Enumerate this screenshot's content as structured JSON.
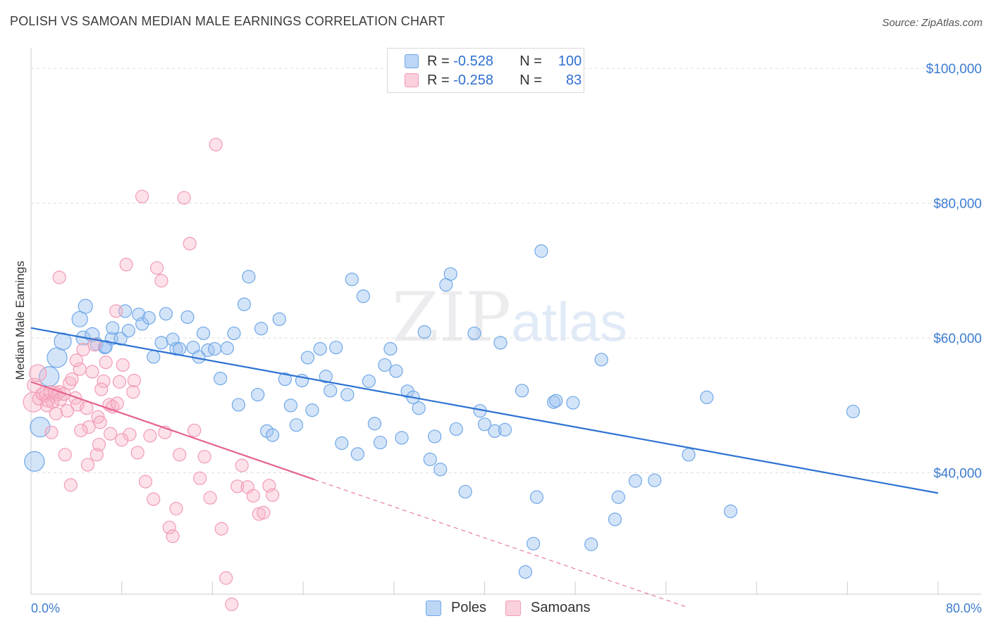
{
  "header": {
    "title": "POLISH VS SAMOAN MEDIAN MALE EARNINGS CORRELATION CHART",
    "source": "Source: ZipAtlas.com"
  },
  "watermark": {
    "zip": "ZIP",
    "atlas": "atlas"
  },
  "legend": {
    "rows": [
      {
        "r_label": "R = ",
        "r_value": "-0.528",
        "n_label": "N = ",
        "n_value": "100",
        "color": "#6fa8e8"
      },
      {
        "r_label": "R = ",
        "r_value": "-0.258",
        "n_label": "N = ",
        "n_value": "83",
        "color": "#f29bb6"
      }
    ]
  },
  "bottom_legend": {
    "poles": "Poles",
    "samoans": "Samoans"
  },
  "chart_data": {
    "type": "scatter",
    "ylabel": "Median Male Earnings",
    "xlim": [
      0,
      80
    ],
    "ylim": [
      22000,
      102000
    ],
    "x_tick_labels": [
      {
        "value": 0,
        "label": "0.0%"
      },
      {
        "value": 80,
        "label": "80.0%"
      }
    ],
    "y_tick_labels": [
      {
        "value": 100000,
        "label": "$100,000"
      },
      {
        "value": 80000,
        "label": "$80,000"
      },
      {
        "value": 60000,
        "label": "$60,000"
      },
      {
        "value": 40000,
        "label": "$40,000"
      }
    ],
    "x_minor_ticks": [
      0,
      8,
      16,
      24,
      32,
      40,
      48,
      56,
      64,
      72,
      80
    ],
    "gridlines": [
      40000,
      60000,
      80000,
      100000
    ],
    "series": [
      {
        "name": "Poles",
        "color": "#6fa8e8",
        "trend": {
          "x0": 0,
          "y0": 61500,
          "x1": 80,
          "y1": 37000
        },
        "points": [
          [
            0.3,
            41700,
            14
          ],
          [
            0.8,
            46800,
            14
          ],
          [
            1.6,
            54300,
            14
          ],
          [
            2.3,
            57100,
            14
          ],
          [
            2.8,
            59500,
            12
          ],
          [
            4.3,
            62800,
            11
          ],
          [
            4.6,
            60000,
            10
          ],
          [
            4.8,
            64700,
            10
          ],
          [
            5.4,
            60500,
            10
          ],
          [
            5.8,
            59100,
            9
          ],
          [
            6.5,
            58600,
            9
          ],
          [
            7.1,
            59900,
            9
          ],
          [
            7.2,
            61500,
            9
          ],
          [
            7.9,
            59900,
            9
          ],
          [
            8.3,
            64000,
            9
          ],
          [
            8.6,
            61100,
            9
          ],
          [
            9.5,
            63500,
            9
          ],
          [
            9.8,
            62100,
            9
          ],
          [
            10.4,
            63000,
            9
          ],
          [
            10.8,
            57200,
            9
          ],
          [
            11.5,
            59300,
            9
          ],
          [
            11.9,
            63600,
            9
          ],
          [
            12.5,
            59800,
            9
          ],
          [
            12.8,
            58400,
            9
          ],
          [
            13.1,
            58400,
            9
          ],
          [
            13.8,
            63100,
            9
          ],
          [
            14.3,
            58600,
            9
          ],
          [
            14.8,
            57200,
            9
          ],
          [
            15.2,
            60700,
            9
          ],
          [
            15.6,
            58200,
            9
          ],
          [
            16.2,
            58400,
            9
          ],
          [
            16.7,
            54000,
            9
          ],
          [
            17.3,
            58500,
            9
          ],
          [
            17.9,
            60700,
            9
          ],
          [
            18.3,
            50100,
            9
          ],
          [
            18.8,
            65000,
            9
          ],
          [
            19.2,
            69100,
            9
          ],
          [
            20.0,
            51600,
            9
          ],
          [
            20.3,
            61400,
            9
          ],
          [
            20.8,
            46200,
            9
          ],
          [
            21.3,
            45600,
            9
          ],
          [
            21.9,
            62800,
            9
          ],
          [
            22.4,
            53900,
            9
          ],
          [
            22.9,
            50000,
            9
          ],
          [
            23.4,
            47100,
            9
          ],
          [
            23.9,
            53700,
            9
          ],
          [
            24.4,
            57100,
            9
          ],
          [
            24.8,
            49300,
            9
          ],
          [
            25.5,
            58400,
            9
          ],
          [
            26.0,
            54300,
            9
          ],
          [
            26.4,
            52200,
            9
          ],
          [
            26.9,
            58600,
            9
          ],
          [
            27.4,
            44400,
            9
          ],
          [
            27.9,
            51600,
            9
          ],
          [
            28.3,
            68700,
            9
          ],
          [
            28.8,
            42800,
            9
          ],
          [
            29.3,
            66200,
            9
          ],
          [
            29.8,
            53600,
            9
          ],
          [
            30.3,
            47300,
            9
          ],
          [
            30.8,
            44500,
            9
          ],
          [
            31.2,
            56000,
            9
          ],
          [
            31.7,
            58400,
            9
          ],
          [
            32.2,
            55100,
            9
          ],
          [
            32.7,
            45200,
            9
          ],
          [
            33.2,
            52100,
            9
          ],
          [
            33.7,
            51200,
            9
          ],
          [
            34.2,
            49600,
            9
          ],
          [
            34.7,
            60900,
            9
          ],
          [
            35.2,
            42000,
            9
          ],
          [
            35.6,
            45400,
            9
          ],
          [
            36.1,
            40500,
            9
          ],
          [
            36.6,
            67900,
            9
          ],
          [
            37.0,
            69500,
            9
          ],
          [
            37.5,
            46500,
            9
          ],
          [
            38.3,
            37200,
            9
          ],
          [
            39.1,
            60700,
            9
          ],
          [
            39.6,
            49200,
            9
          ],
          [
            40.0,
            47200,
            9
          ],
          [
            40.9,
            46200,
            9
          ],
          [
            41.4,
            59300,
            9
          ],
          [
            41.8,
            46400,
            9
          ],
          [
            43.3,
            52200,
            9
          ],
          [
            43.6,
            25300,
            9
          ],
          [
            44.3,
            29500,
            9
          ],
          [
            44.6,
            36400,
            9
          ],
          [
            45.0,
            72900,
            9
          ],
          [
            46.1,
            50500,
            9
          ],
          [
            46.3,
            50700,
            9
          ],
          [
            47.8,
            50400,
            9
          ],
          [
            49.4,
            29400,
            9
          ],
          [
            50.3,
            56800,
            9
          ],
          [
            51.5,
            33100,
            9
          ],
          [
            51.8,
            36400,
            9
          ],
          [
            53.3,
            38800,
            9
          ],
          [
            55.0,
            38900,
            9
          ],
          [
            58.0,
            42700,
            9
          ],
          [
            59.6,
            51200,
            9
          ],
          [
            61.7,
            34300,
            9
          ],
          [
            72.5,
            49100,
            9
          ],
          [
            6.6,
            58700,
            9
          ]
        ]
      },
      {
        "name": "Samoans",
        "color": "#f29bb6",
        "trend": {
          "x0": 0,
          "y0": 53500,
          "x1": 25,
          "y1": 39000,
          "dash_x1": 58,
          "dash_y1": 20000
        },
        "points": [
          [
            0.2,
            50500,
            14
          ],
          [
            0.3,
            53000,
            10
          ],
          [
            0.6,
            54800,
            12
          ],
          [
            0.7,
            51000,
            9
          ],
          [
            1.0,
            51700,
            9
          ],
          [
            1.3,
            51500,
            9
          ],
          [
            1.5,
            50700,
            9
          ],
          [
            1.7,
            52000,
            9
          ],
          [
            1.9,
            50500,
            9
          ],
          [
            2.1,
            51900,
            9
          ],
          [
            2.3,
            51600,
            9
          ],
          [
            2.5,
            52000,
            9
          ],
          [
            2.6,
            50900,
            9
          ],
          [
            2.9,
            51700,
            9
          ],
          [
            3.2,
            49200,
            9
          ],
          [
            2.5,
            69000,
            9
          ],
          [
            3.4,
            53300,
            9
          ],
          [
            3.6,
            53900,
            9
          ],
          [
            3.9,
            51100,
            9
          ],
          [
            4.1,
            50100,
            9
          ],
          [
            4.3,
            55400,
            9
          ],
          [
            4.6,
            58300,
            9
          ],
          [
            4.9,
            49600,
            9
          ],
          [
            5.1,
            46800,
            9
          ],
          [
            5.4,
            55000,
            9
          ],
          [
            5.6,
            59000,
            9
          ],
          [
            5.9,
            48300,
            9
          ],
          [
            6.1,
            47500,
            9
          ],
          [
            6.4,
            53600,
            9
          ],
          [
            6.6,
            56400,
            9
          ],
          [
            6.9,
            50100,
            9
          ],
          [
            7.2,
            49800,
            9
          ],
          [
            7.5,
            64000,
            9
          ],
          [
            7.8,
            53500,
            9
          ],
          [
            8.1,
            56000,
            9
          ],
          [
            8.4,
            70900,
            9
          ],
          [
            8.7,
            45700,
            9
          ],
          [
            9.1,
            53700,
            9
          ],
          [
            9.4,
            43000,
            9
          ],
          [
            9.8,
            81000,
            9
          ],
          [
            10.1,
            38700,
            9
          ],
          [
            10.5,
            45500,
            9
          ],
          [
            10.8,
            36100,
            9
          ],
          [
            11.1,
            70400,
            9
          ],
          [
            11.5,
            68500,
            9
          ],
          [
            11.8,
            46000,
            9
          ],
          [
            12.2,
            31900,
            9
          ],
          [
            12.5,
            30600,
            9
          ],
          [
            12.8,
            34700,
            9
          ],
          [
            13.1,
            42700,
            9
          ],
          [
            13.5,
            80800,
            9
          ],
          [
            14.0,
            74000,
            9
          ],
          [
            14.4,
            46300,
            9
          ],
          [
            14.9,
            39200,
            9
          ],
          [
            15.3,
            42400,
            9
          ],
          [
            15.8,
            36300,
            9
          ],
          [
            16.3,
            88700,
            9
          ],
          [
            16.8,
            31700,
            9
          ],
          [
            17.2,
            24400,
            9
          ],
          [
            17.7,
            20500,
            9
          ],
          [
            18.2,
            38000,
            9
          ],
          [
            18.6,
            41100,
            9
          ],
          [
            19.1,
            37900,
            9
          ],
          [
            19.6,
            36600,
            9
          ],
          [
            20.1,
            33900,
            9
          ],
          [
            20.5,
            34100,
            9
          ],
          [
            21.0,
            38100,
            9
          ],
          [
            21.3,
            36700,
            9
          ],
          [
            4.4,
            46300,
            9
          ],
          [
            5.8,
            42700,
            9
          ],
          [
            7.0,
            45800,
            9
          ],
          [
            8.0,
            44900,
            9
          ],
          [
            9.0,
            52000,
            9
          ],
          [
            3.0,
            42700,
            9
          ],
          [
            3.5,
            38200,
            9
          ],
          [
            5.0,
            41200,
            9
          ],
          [
            6.0,
            44200,
            9
          ],
          [
            1.8,
            46000,
            9
          ],
          [
            2.2,
            48800,
            9
          ],
          [
            4.0,
            56700,
            9
          ],
          [
            6.2,
            52400,
            9
          ],
          [
            7.6,
            50300,
            9
          ],
          [
            1.4,
            50000,
            9
          ]
        ]
      }
    ]
  }
}
